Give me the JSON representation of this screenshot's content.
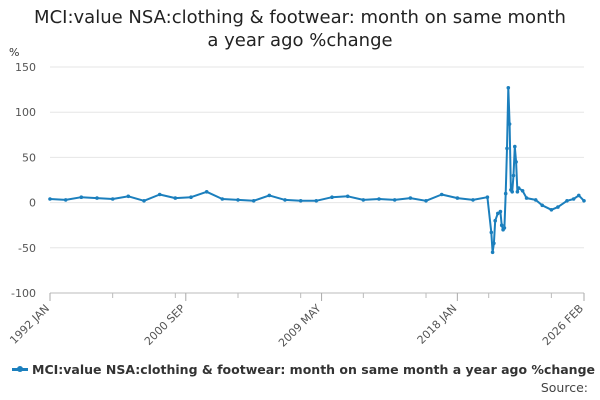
{
  "chart_data": {
    "type": "line",
    "title_line1": "MCI:value NSA:clothing & footwear: month on same month",
    "title_line2": "a year ago %change",
    "ylabel": "%",
    "ylim": [
      -100,
      150
    ],
    "yticks": [
      150,
      100,
      50,
      0,
      -50,
      -100
    ],
    "x_range": [
      "1992-01",
      "2026-02"
    ],
    "xticks": [
      "1992 JAN",
      "2000 SEP",
      "2009 MAY",
      "2018 JAN",
      "2026 FEB"
    ],
    "grid": true,
    "legend_position": "bottom",
    "color": "#1b7fbd",
    "series": [
      {
        "name": "MCI:value NSA:clothing & footwear: month on same month a year ago %change",
        "points": [
          [
            "1992-01",
            4
          ],
          [
            "1993-01",
            3
          ],
          [
            "1994-01",
            6
          ],
          [
            "1995-01",
            5
          ],
          [
            "1996-01",
            4
          ],
          [
            "1997-01",
            7
          ],
          [
            "1998-01",
            2
          ],
          [
            "1999-01",
            9
          ],
          [
            "2000-01",
            5
          ],
          [
            "2001-01",
            6
          ],
          [
            "2002-01",
            12
          ],
          [
            "2003-01",
            4
          ],
          [
            "2004-01",
            3
          ],
          [
            "2005-01",
            2
          ],
          [
            "2006-01",
            8
          ],
          [
            "2007-01",
            3
          ],
          [
            "2008-01",
            2
          ],
          [
            "2009-01",
            2
          ],
          [
            "2010-01",
            6
          ],
          [
            "2011-01",
            7
          ],
          [
            "2012-01",
            3
          ],
          [
            "2013-01",
            4
          ],
          [
            "2014-01",
            3
          ],
          [
            "2015-01",
            5
          ],
          [
            "2016-01",
            2
          ],
          [
            "2017-01",
            9
          ],
          [
            "2018-01",
            5
          ],
          [
            "2019-01",
            3
          ],
          [
            "2019-12",
            6
          ],
          [
            "2020-03",
            -33
          ],
          [
            "2020-04",
            -55
          ],
          [
            "2020-05",
            -45
          ],
          [
            "2020-06",
            -20
          ],
          [
            "2020-08",
            -12
          ],
          [
            "2020-10",
            -10
          ],
          [
            "2020-11",
            -25
          ],
          [
            "2020-12",
            -30
          ],
          [
            "2021-01",
            -28
          ],
          [
            "2021-02",
            10
          ],
          [
            "2021-03",
            60
          ],
          [
            "2021-04",
            127
          ],
          [
            "2021-05",
            87
          ],
          [
            "2021-06",
            14
          ],
          [
            "2021-07",
            12
          ],
          [
            "2021-08",
            30
          ],
          [
            "2021-09",
            62
          ],
          [
            "2021-10",
            45
          ],
          [
            "2021-11",
            12
          ],
          [
            "2021-12",
            16
          ],
          [
            "2022-03",
            13
          ],
          [
            "2022-06",
            5
          ],
          [
            "2023-01",
            3
          ],
          [
            "2023-06",
            -3
          ],
          [
            "2024-01",
            -8
          ],
          [
            "2024-06",
            -5
          ],
          [
            "2025-01",
            2
          ],
          [
            "2025-06",
            4
          ],
          [
            "2025-10",
            8
          ],
          [
            "2026-02",
            2
          ]
        ]
      }
    ]
  },
  "legend_label": "MCI:value NSA:clothing & footwear: month on same month a year ago %change",
  "source_label": "Source:"
}
